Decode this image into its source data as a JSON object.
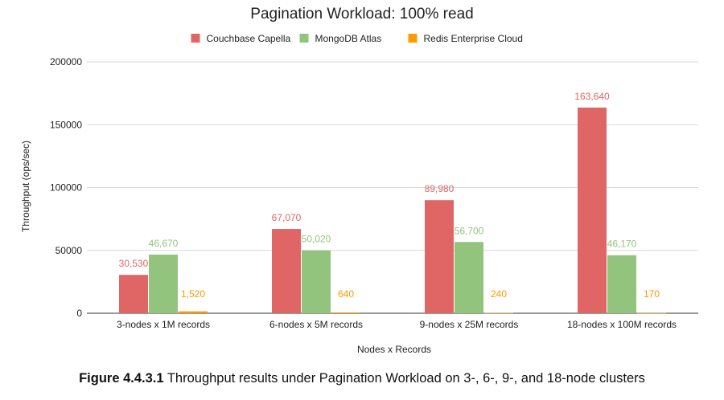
{
  "chart_data": {
    "type": "bar",
    "title": "Pagination Workload: 100% read",
    "xlabel": "Nodes x Records",
    "ylabel": "Throughput (ops/sec)",
    "ylim": [
      0,
      200000
    ],
    "yticks": [
      "0",
      "50000",
      "100000",
      "150000",
      "200000"
    ],
    "ytick_values": [
      0,
      50000,
      100000,
      150000,
      200000
    ],
    "grid": true,
    "legend_position": "top",
    "categories": [
      "3-nodes x 1M records",
      "6-nodes x 5M records",
      "9-nodes x 25M records",
      "18-nodes x 100M records"
    ],
    "series": [
      {
        "name": "Couchbase Capella",
        "color": "#e06666",
        "values": [
          30530,
          67070,
          89980,
          163640
        ],
        "labels": [
          "30,530",
          "67,070",
          "89,980",
          "163,640"
        ]
      },
      {
        "name": "MongoDB Atlas",
        "color": "#93c47d",
        "values": [
          46670,
          50020,
          56700,
          46170
        ],
        "labels": [
          "46,670",
          "50,020",
          "56,700",
          "46,170"
        ]
      },
      {
        "name": "Redis Enterprise Cloud",
        "color": "#ff9900",
        "values": [
          1520,
          640,
          240,
          170
        ],
        "labels": [
          "1,520",
          "640",
          "240",
          "170"
        ]
      }
    ]
  },
  "caption": {
    "label": "Figure 4.4.3.1",
    "text": " Throughput results under Pagination Workload on 3-, 6-, 9-, and 18-node clusters"
  }
}
